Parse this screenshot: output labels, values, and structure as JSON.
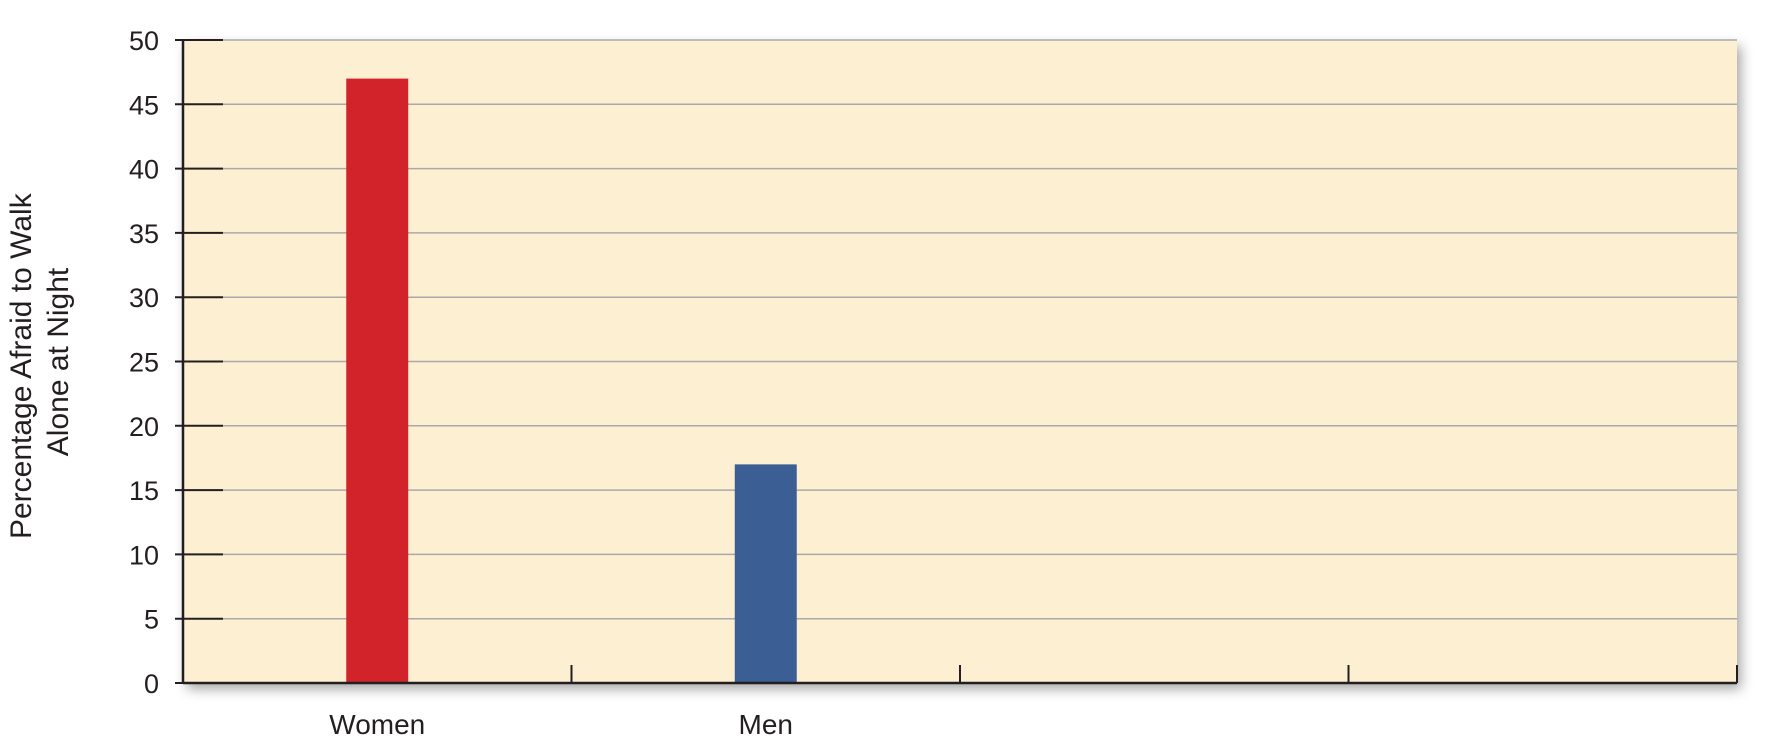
{
  "chart_data": {
    "type": "bar",
    "categories": [
      "Women",
      "Men"
    ],
    "values": [
      47,
      17
    ],
    "category_slots": 4,
    "ylabel_lines": [
      "Percentage Afraid to Walk",
      "Alone at Night"
    ],
    "xlabel": "",
    "ylim": [
      0,
      50
    ],
    "yticks": [
      0,
      5,
      10,
      15,
      20,
      25,
      30,
      35,
      40,
      45,
      50
    ],
    "grid": true,
    "legend": "none",
    "colors": {
      "plot_background": "#fdf0d2",
      "bars": [
        "#d2232a",
        "#3b5e94"
      ],
      "grid": "#a9a9a9",
      "axis": "#231f20"
    }
  }
}
